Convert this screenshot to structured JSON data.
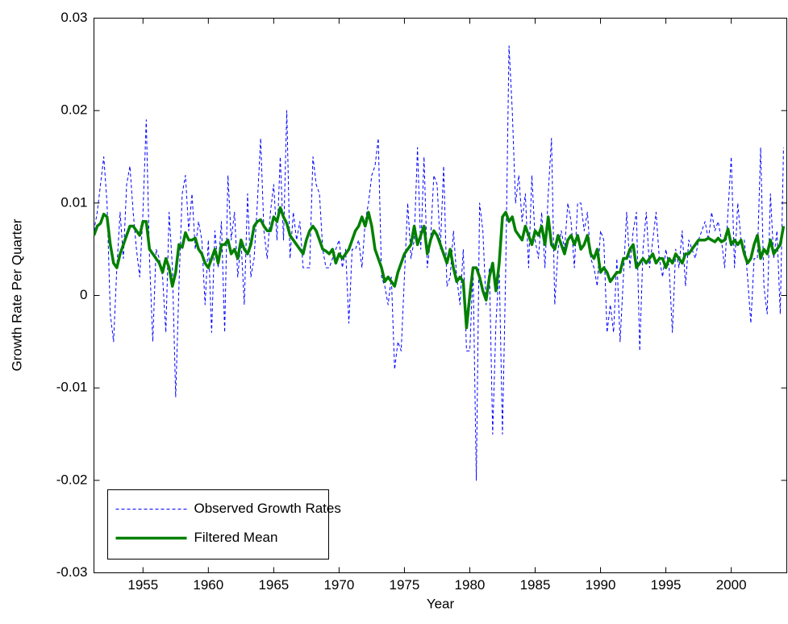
{
  "chart_data": {
    "type": "line",
    "xlabel": "Year",
    "ylabel": "Growth Rate Per Quarter",
    "x": [
      1951.25,
      1951.5,
      1951.75,
      1952,
      1952.25,
      1952.5,
      1952.75,
      1953,
      1953.25,
      1953.5,
      1953.75,
      1954,
      1954.25,
      1954.5,
      1954.75,
      1955,
      1955.25,
      1955.5,
      1955.75,
      1956,
      1956.25,
      1956.5,
      1956.75,
      1957,
      1957.25,
      1957.5,
      1957.75,
      1958,
      1958.25,
      1958.5,
      1958.75,
      1959,
      1959.25,
      1959.5,
      1959.75,
      1960,
      1960.25,
      1960.5,
      1960.75,
      1961,
      1961.25,
      1961.5,
      1961.75,
      1962,
      1962.25,
      1962.5,
      1962.75,
      1963,
      1963.25,
      1963.5,
      1963.75,
      1964,
      1964.25,
      1964.5,
      1964.75,
      1965,
      1965.25,
      1965.5,
      1965.75,
      1966,
      1966.25,
      1966.5,
      1966.75,
      1967,
      1967.25,
      1967.5,
      1967.75,
      1968,
      1968.25,
      1968.5,
      1968.75,
      1969,
      1969.25,
      1969.5,
      1969.75,
      1970,
      1970.25,
      1970.5,
      1970.75,
      1971,
      1971.25,
      1971.5,
      1971.75,
      1972,
      1972.25,
      1972.5,
      1972.75,
      1973,
      1973.25,
      1973.5,
      1973.75,
      1974,
      1974.25,
      1974.5,
      1974.75,
      1975,
      1975.25,
      1975.5,
      1975.75,
      1976,
      1976.25,
      1976.5,
      1976.75,
      1977,
      1977.25,
      1977.5,
      1977.75,
      1978,
      1978.25,
      1978.5,
      1978.75,
      1979,
      1979.25,
      1979.5,
      1979.75,
      1980,
      1980.25,
      1980.5,
      1980.75,
      1981,
      1981.25,
      1981.5,
      1981.75,
      1982,
      1982.25,
      1982.5,
      1982.75,
      1983,
      1983.25,
      1983.5,
      1983.75,
      1984,
      1984.25,
      1984.5,
      1984.75,
      1985,
      1985.25,
      1985.5,
      1985.75,
      1986,
      1986.25,
      1986.5,
      1986.75,
      1987,
      1987.25,
      1987.5,
      1987.75,
      1988,
      1988.25,
      1988.5,
      1988.75,
      1989,
      1989.25,
      1989.5,
      1989.75,
      1990,
      1990.25,
      1990.5,
      1990.75,
      1991,
      1991.25,
      1991.5,
      1991.75,
      1992,
      1992.25,
      1992.5,
      1992.75,
      1993,
      1993.25,
      1993.5,
      1993.75,
      1994,
      1994.25,
      1994.5,
      1994.75,
      1995,
      1995.25,
      1995.5,
      1995.75,
      1996,
      1996.25,
      1996.5,
      1996.75,
      1997,
      1997.25,
      1997.5,
      1997.75,
      1998,
      1998.25,
      1998.5,
      1998.75,
      1999,
      1999.25,
      1999.5,
      1999.75,
      2000,
      2000.25,
      2000.5,
      2000.75,
      2001,
      2001.25,
      2001.5,
      2001.75,
      2002,
      2002.25,
      2002.5,
      2002.75,
      2003,
      2003.25,
      2003.5,
      2003.75,
      2004
    ],
    "series": [
      {
        "name": "Observed Growth Rates",
        "color": "#0000ff",
        "dash": true,
        "values": [
          0.007,
          0.009,
          0.012,
          0.015,
          0.01,
          -0.002,
          -0.005,
          0.003,
          0.009,
          0.004,
          0.012,
          0.014,
          0.009,
          0.005,
          0.002,
          0.009,
          0.019,
          0.004,
          -0.005,
          0.005,
          0.004,
          0.002,
          -0.004,
          0.009,
          0.003,
          -0.011,
          0.001,
          0.011,
          0.013,
          0.007,
          0.011,
          0.005,
          0.008,
          0.006,
          -0.001,
          0.006,
          -0.004,
          0.007,
          0.003,
          0.008,
          -0.004,
          0.013,
          0.006,
          0.009,
          0.002,
          0.006,
          -0.001,
          0.011,
          0.002,
          0.004,
          0.01,
          0.017,
          0.007,
          0.004,
          0.009,
          0.012,
          0.006,
          0.015,
          0.006,
          0.02,
          0.004,
          0.009,
          0.006,
          0.008,
          0.003,
          0.003,
          0.003,
          0.015,
          0.012,
          0.011,
          0.005,
          0.003,
          0.003,
          0.004,
          0.005,
          0.006,
          0.003,
          0.005,
          -0.003,
          0.005,
          0.005,
          0.006,
          0.003,
          0.008,
          0.01,
          0.013,
          0.014,
          0.017,
          0.002,
          0.001,
          -0.001,
          0.002,
          -0.008,
          -0.005,
          -0.006,
          0.002,
          0.01,
          0.004,
          0.006,
          0.016,
          0.005,
          0.015,
          0.003,
          0.006,
          0.013,
          0.012,
          0.005,
          0.014,
          0.001,
          0.002,
          0.007,
          0.002,
          -0.001,
          0.005,
          -0.006,
          -0.006,
          0.003,
          -0.02,
          0.01,
          0.007,
          -0.001,
          0.003,
          -0.015,
          -0.003,
          0.003,
          -0.015,
          0.003,
          0.027,
          0.02,
          0.01,
          0.013,
          0.008,
          0.011,
          0.003,
          0.013,
          0.006,
          0.004,
          0.009,
          0.003,
          0.011,
          0.017,
          -0.001,
          0.005,
          0.007,
          0.005,
          0.01,
          0.008,
          0.003,
          0.01,
          0.01,
          0.007,
          0.009,
          0.004,
          0.003,
          0.001,
          0.007,
          0.006,
          -0.004,
          -0.001,
          -0.004,
          0.004,
          -0.005,
          0.002,
          0.009,
          0.003,
          0.007,
          0.009,
          -0.006,
          0.005,
          0.009,
          0.003,
          0.006,
          0.009,
          0.004,
          0.002,
          0.005,
          0.003,
          -0.004,
          0.005,
          0.003,
          0.007,
          0.001,
          0.006,
          0.005,
          0.004,
          0.006,
          0.007,
          0.008,
          0.006,
          0.009,
          0.007,
          0.008,
          0.006,
          0.003,
          0.009,
          0.015,
          0.003,
          0.01,
          0.006,
          0.006,
          0.002,
          -0.003,
          0.004,
          0.004,
          0.016,
          0.001,
          -0.002,
          0.011,
          0.004,
          0.007,
          -0.002,
          0.016
        ]
      },
      {
        "name": "Filtered Mean",
        "color": "#008000",
        "dash": false,
        "values": [
          0.0065,
          0.0075,
          0.0078,
          0.0088,
          0.0085,
          0.0055,
          0.0035,
          0.003,
          0.0045,
          0.0055,
          0.0065,
          0.0075,
          0.0075,
          0.007,
          0.0065,
          0.008,
          0.008,
          0.005,
          0.0045,
          0.004,
          0.0035,
          0.0025,
          0.004,
          0.003,
          0.001,
          0.0025,
          0.0055,
          0.0052,
          0.0068,
          0.006,
          0.006,
          0.0062,
          0.005,
          0.0045,
          0.0035,
          0.003,
          0.004,
          0.005,
          0.0035,
          0.0055,
          0.0055,
          0.006,
          0.0045,
          0.005,
          0.004,
          0.006,
          0.005,
          0.0045,
          0.0055,
          0.0075,
          0.008,
          0.0082,
          0.0075,
          0.007,
          0.007,
          0.0085,
          0.008,
          0.0095,
          0.0085,
          0.0078,
          0.0065,
          0.006,
          0.0055,
          0.005,
          0.0045,
          0.006,
          0.007,
          0.0075,
          0.007,
          0.006,
          0.005,
          0.0048,
          0.0045,
          0.005,
          0.0035,
          0.0045,
          0.004,
          0.0045,
          0.005,
          0.006,
          0.007,
          0.0075,
          0.0085,
          0.0075,
          0.009,
          0.0075,
          0.005,
          0.004,
          0.003,
          0.0015,
          0.002,
          0.0015,
          0.001,
          0.0025,
          0.0035,
          0.0045,
          0.005,
          0.0055,
          0.0075,
          0.0055,
          0.0065,
          0.0075,
          0.0045,
          0.006,
          0.007,
          0.0065,
          0.0055,
          0.0045,
          0.0035,
          0.005,
          0.003,
          0.0015,
          0.002,
          0.0015,
          -0.0035,
          0.0,
          0.003,
          0.003,
          0.002,
          0.0005,
          -0.0005,
          0.002,
          0.0035,
          0.0005,
          0.0035,
          0.0085,
          0.009,
          0.008,
          0.0085,
          0.007,
          0.0065,
          0.006,
          0.0075,
          0.0065,
          0.0055,
          0.007,
          0.0065,
          0.0075,
          0.0055,
          0.0085,
          0.0055,
          0.005,
          0.0065,
          0.0055,
          0.0045,
          0.006,
          0.0065,
          0.0055,
          0.0065,
          0.005,
          0.0055,
          0.0065,
          0.0045,
          0.004,
          0.005,
          0.0025,
          0.003,
          0.0025,
          0.0015,
          0.002,
          0.0025,
          0.0025,
          0.004,
          0.004,
          0.005,
          0.0055,
          0.003,
          0.0035,
          0.004,
          0.0035,
          0.004,
          0.0045,
          0.0035,
          0.004,
          0.004,
          0.003,
          0.004,
          0.0035,
          0.0045,
          0.004,
          0.0035,
          0.0045,
          0.0045,
          0.005,
          0.0055,
          0.006,
          0.006,
          0.006,
          0.0062,
          0.006,
          0.0058,
          0.0062,
          0.0058,
          0.006,
          0.0072,
          0.0055,
          0.006,
          0.0055,
          0.006,
          0.0045,
          0.0035,
          0.004,
          0.0055,
          0.0065,
          0.004,
          0.005,
          0.0045,
          0.006,
          0.0045,
          0.005,
          0.0055,
          0.0075
        ]
      }
    ],
    "xlim": [
      1951.25,
      2004.25
    ],
    "xticks": [
      1955,
      1960,
      1965,
      1970,
      1975,
      1980,
      1985,
      1990,
      1995,
      2000
    ],
    "ylim": [
      -0.03,
      0.03
    ],
    "yticks": [
      -0.03,
      -0.02,
      -0.01,
      0,
      0.01,
      0.02,
      0.03
    ],
    "grid": false,
    "legend": "lower left"
  }
}
